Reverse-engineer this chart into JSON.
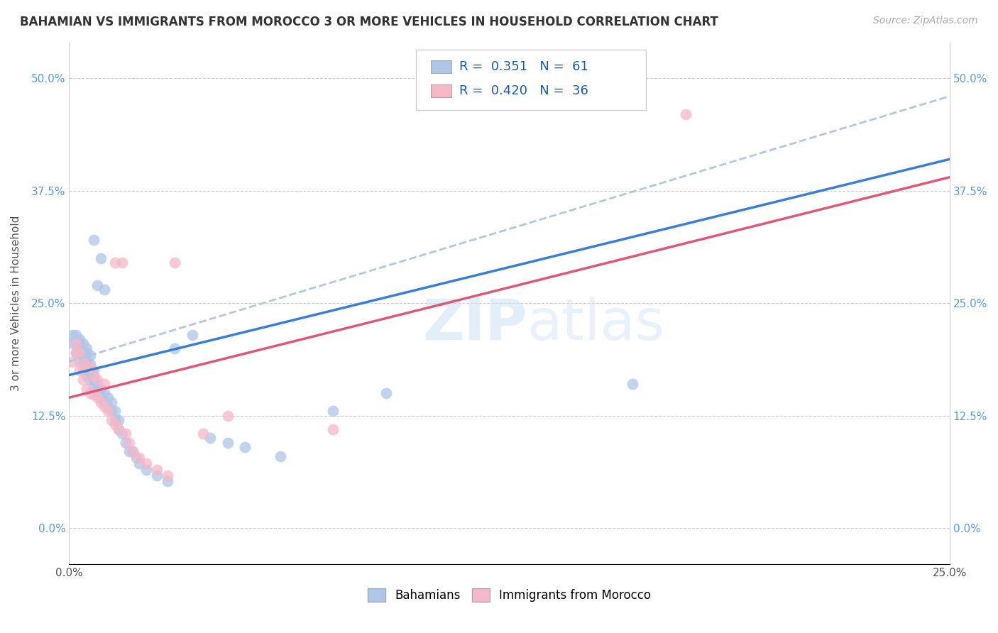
{
  "title": "BAHAMIAN VS IMMIGRANTS FROM MOROCCO 3 OR MORE VEHICLES IN HOUSEHOLD CORRELATION CHART",
  "source": "Source: ZipAtlas.com",
  "xlabel_ticks": [
    "0.0%",
    "",
    "",
    "",
    "",
    "25.0%"
  ],
  "xlabel_vals": [
    0.0,
    0.05,
    0.1,
    0.15,
    0.2,
    0.25
  ],
  "ylabel_ticks": [
    "0.0%",
    "12.5%",
    "25.0%",
    "37.5%",
    "50.0%"
  ],
  "ylabel_vals": [
    0.0,
    0.125,
    0.25,
    0.375,
    0.5
  ],
  "ylabel_label": "3 or more Vehicles in Household",
  "xlim": [
    0.0,
    0.25
  ],
  "ylim": [
    -0.04,
    0.54
  ],
  "legend_labels": [
    "Bahamians",
    "Immigrants from Morocco"
  ],
  "R_blue": 0.351,
  "N_blue": 61,
  "R_pink": 0.42,
  "N_pink": 36,
  "blue_color": "#aec6e8",
  "pink_color": "#f4b8c8",
  "blue_line_color": "#3a7fd5",
  "pink_line_color": "#e05878",
  "dashed_line_color": "#b0c8e0",
  "watermark": "ZIPatlas",
  "blue_scatter_x": [
    0.001,
    0.001,
    0.002,
    0.002,
    0.002,
    0.003,
    0.003,
    0.003,
    0.003,
    0.004,
    0.004,
    0.004,
    0.004,
    0.005,
    0.005,
    0.005,
    0.005,
    0.005,
    0.006,
    0.006,
    0.006,
    0.006,
    0.007,
    0.007,
    0.007,
    0.007,
    0.008,
    0.008,
    0.008,
    0.009,
    0.009,
    0.009,
    0.01,
    0.01,
    0.01,
    0.011,
    0.011,
    0.012,
    0.012,
    0.013,
    0.013,
    0.014,
    0.014,
    0.015,
    0.016,
    0.017,
    0.018,
    0.019,
    0.02,
    0.022,
    0.025,
    0.028,
    0.03,
    0.035,
    0.04,
    0.045,
    0.05,
    0.06,
    0.075,
    0.09,
    0.16
  ],
  "blue_scatter_y": [
    0.205,
    0.215,
    0.195,
    0.205,
    0.215,
    0.185,
    0.195,
    0.205,
    0.21,
    0.175,
    0.185,
    0.195,
    0.205,
    0.17,
    0.178,
    0.188,
    0.195,
    0.2,
    0.165,
    0.172,
    0.182,
    0.192,
    0.158,
    0.165,
    0.175,
    0.32,
    0.15,
    0.16,
    0.27,
    0.145,
    0.155,
    0.3,
    0.14,
    0.15,
    0.265,
    0.135,
    0.145,
    0.13,
    0.14,
    0.12,
    0.13,
    0.11,
    0.12,
    0.105,
    0.095,
    0.085,
    0.085,
    0.078,
    0.072,
    0.065,
    0.058,
    0.052,
    0.2,
    0.215,
    0.1,
    0.095,
    0.09,
    0.08,
    0.13,
    0.15,
    0.16
  ],
  "pink_scatter_x": [
    0.001,
    0.002,
    0.002,
    0.003,
    0.003,
    0.004,
    0.004,
    0.005,
    0.005,
    0.006,
    0.006,
    0.007,
    0.007,
    0.008,
    0.008,
    0.009,
    0.01,
    0.01,
    0.011,
    0.012,
    0.013,
    0.013,
    0.014,
    0.015,
    0.016,
    0.017,
    0.018,
    0.02,
    0.022,
    0.025,
    0.028,
    0.03,
    0.038,
    0.045,
    0.075,
    0.175
  ],
  "pink_scatter_y": [
    0.185,
    0.195,
    0.205,
    0.175,
    0.195,
    0.165,
    0.185,
    0.155,
    0.18,
    0.15,
    0.178,
    0.148,
    0.17,
    0.145,
    0.165,
    0.14,
    0.135,
    0.16,
    0.13,
    0.12,
    0.295,
    0.115,
    0.11,
    0.295,
    0.105,
    0.095,
    0.085,
    0.078,
    0.072,
    0.065,
    0.058,
    0.295,
    0.105,
    0.125,
    0.11,
    0.46
  ],
  "blue_trendline_x": [
    0.0,
    0.25
  ],
  "blue_trendline_y": [
    0.17,
    0.41
  ],
  "pink_trendline_x": [
    0.0,
    0.25
  ],
  "pink_trendline_y": [
    0.145,
    0.39
  ],
  "dashed_trendline_x": [
    0.0,
    0.25
  ],
  "dashed_trendline_y": [
    0.185,
    0.48
  ]
}
